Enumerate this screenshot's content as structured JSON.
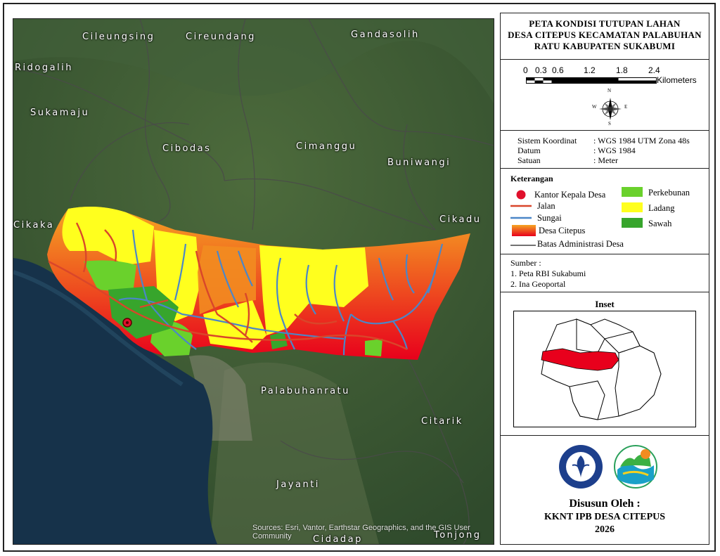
{
  "map": {
    "places": [
      {
        "name": "Cileungsing"
      },
      {
        "name": "Cireundang"
      },
      {
        "name": "Gandasolih"
      },
      {
        "name": "Ridogalih"
      },
      {
        "name": "Sukamaju"
      },
      {
        "name": "Cibodas"
      },
      {
        "name": "Cimanggu"
      },
      {
        "name": "Buniwangi"
      },
      {
        "name": "Cikaka"
      },
      {
        "name": "Cikadu"
      },
      {
        "name": "Palabuhanratu"
      },
      {
        "name": "Citarik"
      },
      {
        "name": "Jayanti"
      },
      {
        "name": "Cidadap"
      },
      {
        "name": "Tonjong"
      }
    ],
    "attribution": "Sources: Esri, Vantor, Earthstar Geographics, and the GIS User Community",
    "colors": {
      "sea": "#16324a",
      "land": "#3f5d34",
      "perkebunan": "#6ad12c",
      "ladang": "#ffff1e",
      "sawah": "#37a52c",
      "jalan": "#d9462a",
      "sungai": "#4b86c8",
      "citepus_from": "#f5a623",
      "citepus_to": "#e8001c",
      "kantor": "#e0102c"
    }
  },
  "title": {
    "line1": "PETA KONDISI TUTUPAN LAHAN",
    "line2": "DESA CITEPUS KECAMATAN PALABUHAN",
    "line3": "RATU KABUPATEN SUKABUMI"
  },
  "scale": {
    "ticks": [
      "0",
      "0.3",
      "0.6",
      "1.2",
      "1.8",
      "2.4"
    ],
    "unit": "Kilometers"
  },
  "compass": {
    "n": "N",
    "s": "S",
    "e": "E",
    "w": "W"
  },
  "info": [
    {
      "label": "Sistem Koordinat",
      "value": ": WGS 1984 UTM Zona 48s"
    },
    {
      "label": "Datum",
      "value": ": WGS 1984"
    },
    {
      "label": "Satuan",
      "value": ": Meter"
    }
  ],
  "legend": {
    "heading": "Keterangan",
    "kantor": "Kantor Kepala Desa",
    "jalan": "Jalan",
    "sungai": "Sungai",
    "citepus": "Desa Citepus",
    "batas": "Batas Administrasi Desa",
    "perkebunan": "Perkebunan",
    "ladang": "Ladang",
    "sawah": "Sawah"
  },
  "sources": {
    "heading": "Sumber :",
    "items": [
      "1. Peta RBI Sukabumi",
      "2. Ina Geoportal"
    ]
  },
  "inset": {
    "title": "Inset"
  },
  "logos": {
    "ipb_ring": "INSTITUT PERTANIAN BOGOR",
    "ipb_bottom": "BOGOR"
  },
  "credit": {
    "line1": "Disusun Oleh :",
    "line2": "KKNT IPB DESA CITEPUS",
    "line3": "2026"
  }
}
